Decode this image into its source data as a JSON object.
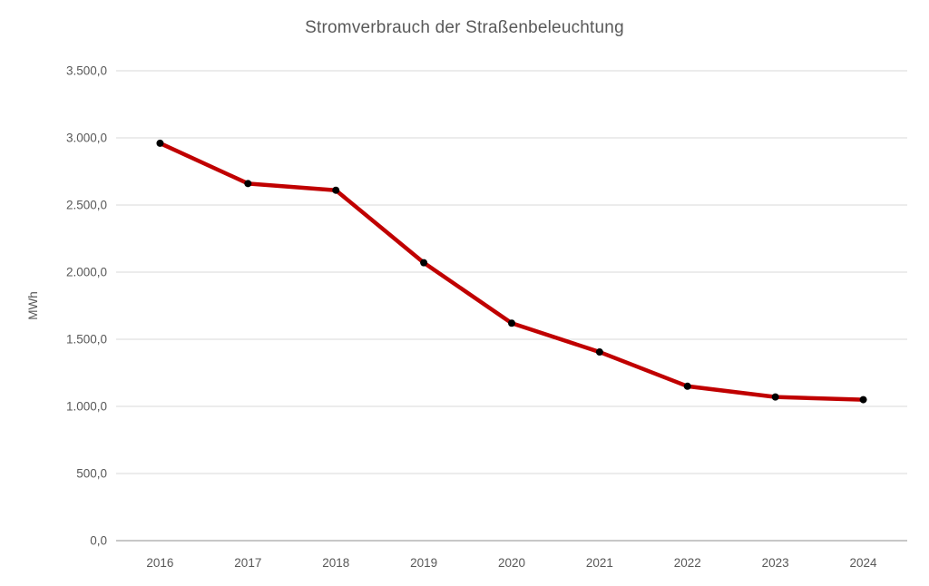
{
  "page": {
    "background": "#ffffff"
  },
  "chart_data": {
    "type": "line",
    "title": "Stromverbrauch der Straßenbeleuchtung",
    "ylabel": "MWh",
    "xlabel": "",
    "categories": [
      "2016",
      "2017",
      "2018",
      "2019",
      "2020",
      "2021",
      "2022",
      "2023",
      "2024"
    ],
    "values": [
      2960,
      2660,
      2610,
      2070,
      1620,
      1405,
      1150,
      1070,
      1050
    ],
    "ylim": [
      0,
      3500
    ],
    "ytick_step": 500,
    "yticks": [
      {
        "value": 0,
        "label": "0,0"
      },
      {
        "value": 500,
        "label": "500,0"
      },
      {
        "value": 1000,
        "label": "1.000,0"
      },
      {
        "value": 1500,
        "label": "1.500,0"
      },
      {
        "value": 2000,
        "label": "2.000,0"
      },
      {
        "value": 2500,
        "label": "2.500,0"
      },
      {
        "value": 3000,
        "label": "3.000,0"
      },
      {
        "value": 3500,
        "label": "3.500,0"
      }
    ],
    "grid": "horizontal",
    "legend": "none",
    "line_color": "#C00000",
    "marker_color": "#000000",
    "gridline_color": "#D9D9D9",
    "axis_line_color": "#BFBFBF",
    "text_color": "#595959"
  }
}
